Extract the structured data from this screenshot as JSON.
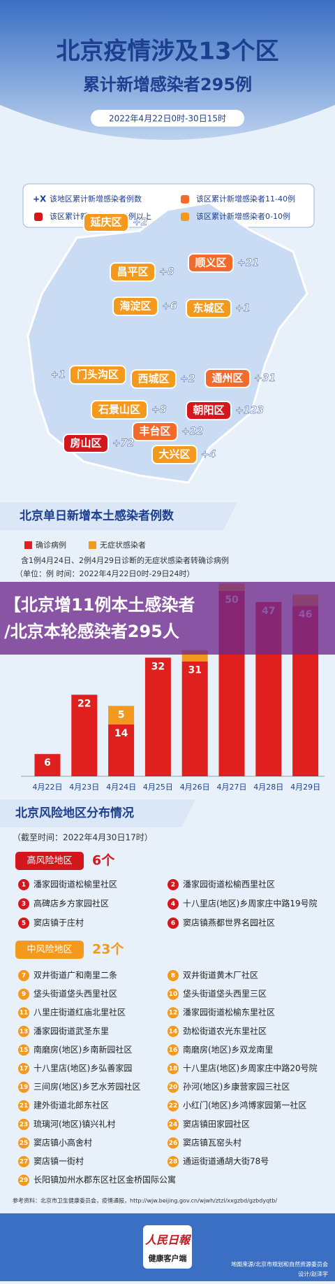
{
  "header": {
    "title": "北京疫情涉及13个区",
    "subtitle": "累计新增感染者295例",
    "date": "2022年4月22日0时-30日15时"
  },
  "map": {
    "legend": [
      {
        "marker": "+X",
        "text": "该地区累计新增感染者例数"
      },
      {
        "color": "#f26b2d",
        "text": "该区累计新增感染者11-40例"
      },
      {
        "color": "#d4161d",
        "text": "该区累计新增感染者40例以上"
      },
      {
        "color": "#f39a1e",
        "text": "该区累计新增感染者0-10例"
      }
    ],
    "districts": [
      {
        "name": "延庆区",
        "value": 2,
        "value_label": "+2",
        "color": "#f39a1e"
      },
      {
        "name": "昌平区",
        "value": 8,
        "value_label": "+8",
        "color": "#f39a1e"
      },
      {
        "name": "顺义区",
        "value": 21,
        "value_label": "+21",
        "color": "#f26b2d"
      },
      {
        "name": "海淀区",
        "value": 6,
        "value_label": "+6",
        "color": "#f39a1e"
      },
      {
        "name": "东城区",
        "value": 1,
        "value_label": "+1",
        "color": "#f39a1e"
      },
      {
        "name": "门头沟区",
        "value": 1,
        "value_label": "+1",
        "color": "#f39a1e"
      },
      {
        "name": "西城区",
        "value": 2,
        "value_label": "+2",
        "color": "#f39a1e"
      },
      {
        "name": "通州区",
        "value": 31,
        "value_label": "+31",
        "color": "#f26b2d"
      },
      {
        "name": "石景山区",
        "value": 8,
        "value_label": "+8",
        "color": "#f39a1e"
      },
      {
        "name": "朝阳区",
        "value": 123,
        "value_label": "+123",
        "color": "#d4161d"
      },
      {
        "name": "丰台区",
        "value": 22,
        "value_label": "+22",
        "color": "#f26b2d"
      },
      {
        "name": "房山区",
        "value": 72,
        "value_label": "+72",
        "color": "#d4161d"
      },
      {
        "name": "大兴区",
        "value": 4,
        "value_label": "+4",
        "color": "#f39a1e"
      }
    ]
  },
  "chart_data": {
    "type": "bar",
    "stacked": true,
    "title": "北京单日新增本土感染者例数",
    "note": "含1例4月24日、2例4月29日诊断的无症状感染者转确诊病例",
    "unit": "（单位：例  时间：2022年4月22日0时-29日24时）",
    "categories": [
      "4月22日",
      "4月23日",
      "4月24日",
      "4月25日",
      "4月26日",
      "4月27日",
      "4月28日",
      "4月29日"
    ],
    "series": [
      {
        "name": "确诊病例",
        "color": "#e0201f",
        "values": [
          6,
          22,
          14,
          32,
          31,
          50,
          47,
          46
        ]
      },
      {
        "name": "无症状感染者",
        "color": "#f39a1e",
        "values": [
          0,
          0,
          5,
          0,
          3,
          2,
          0,
          3
        ]
      }
    ]
  },
  "overlay": {
    "lines": [
      "【北京增11例本土感染者",
      "/北京本轮感染者295人"
    ]
  },
  "risk": {
    "title": "北京风险地区分布情况",
    "date": "（截至时间：2022年4月30日17时）",
    "high": {
      "label": "高风险地区",
      "count": "6个",
      "items": [
        {
          "no": "1",
          "name": "潘家园街道松榆里社区"
        },
        {
          "no": "2",
          "name": "潘家园街道松榆西里社区"
        },
        {
          "no": "3",
          "name": "高碑店乡方家园社区"
        },
        {
          "no": "4",
          "name": "十八里店(地区)乡周家庄中路19号院"
        },
        {
          "no": "5",
          "name": "窦店镇于庄村"
        },
        {
          "no": "6",
          "name": "窦店镇燕都世界名园社区"
        }
      ]
    },
    "medium": {
      "label": "中风险地区",
      "count": "23个",
      "items": [
        {
          "no": "7",
          "name": "双井街道广和南里二条"
        },
        {
          "no": "8",
          "name": "双井街道黄木厂社区"
        },
        {
          "no": "9",
          "name": "垡头街道垡头西里社区"
        },
        {
          "no": "10",
          "name": "垡头街道垡头西里三区"
        },
        {
          "no": "11",
          "name": "八里庄街道红庙北里社区"
        },
        {
          "no": "12",
          "name": "潘家园街道松榆东里社区"
        },
        {
          "no": "13",
          "name": "潘家园街道武圣东里"
        },
        {
          "no": "14",
          "name": "劲松街道农光东里社区"
        },
        {
          "no": "15",
          "name": "南磨房(地区)乡南新园社区"
        },
        {
          "no": "16",
          "name": "南磨房(地区)乡双龙南里"
        },
        {
          "no": "17",
          "name": "十八里店(地区)乡弘善家园"
        },
        {
          "no": "18",
          "name": "十八里店(地区)乡周家庄中路20号院"
        },
        {
          "no": "19",
          "name": "三间房(地区)乡艺水芳园社区"
        },
        {
          "no": "20",
          "name": "孙河(地区)乡康营家园三社区"
        },
        {
          "no": "21",
          "name": "建外街道北郎东社区"
        },
        {
          "no": "22",
          "name": "小红门(地区)乡鸿博家园第一社区"
        },
        {
          "no": "23",
          "name": "琉璃河(地区)镇兴礼村"
        },
        {
          "no": "24",
          "name": "窦店镇田家园社区"
        },
        {
          "no": "25",
          "name": "窦店镇小高舍村"
        },
        {
          "no": "26",
          "name": "窦店镇瓦窑头村"
        },
        {
          "no": "27",
          "name": "窦店镇一街村"
        },
        {
          "no": "28",
          "name": "通运街道通胡大街78号"
        },
        {
          "no": "29",
          "name": "长阳镇加州水郡东区社区金桥国际公寓"
        }
      ]
    }
  },
  "footer": {
    "reference": "参考资料：北京市卫生健康委员会，疫情通报，http://wjw.beijing.gov.cn/wjwh/ztzl/xxgzbd/gzbdyqtb/",
    "logo_top": "人民日報",
    "logo_bottom": "健康客户端",
    "map_source": "地图来源/北京市规划和自然资源委员会",
    "designer": "设计/赵泽宇"
  }
}
